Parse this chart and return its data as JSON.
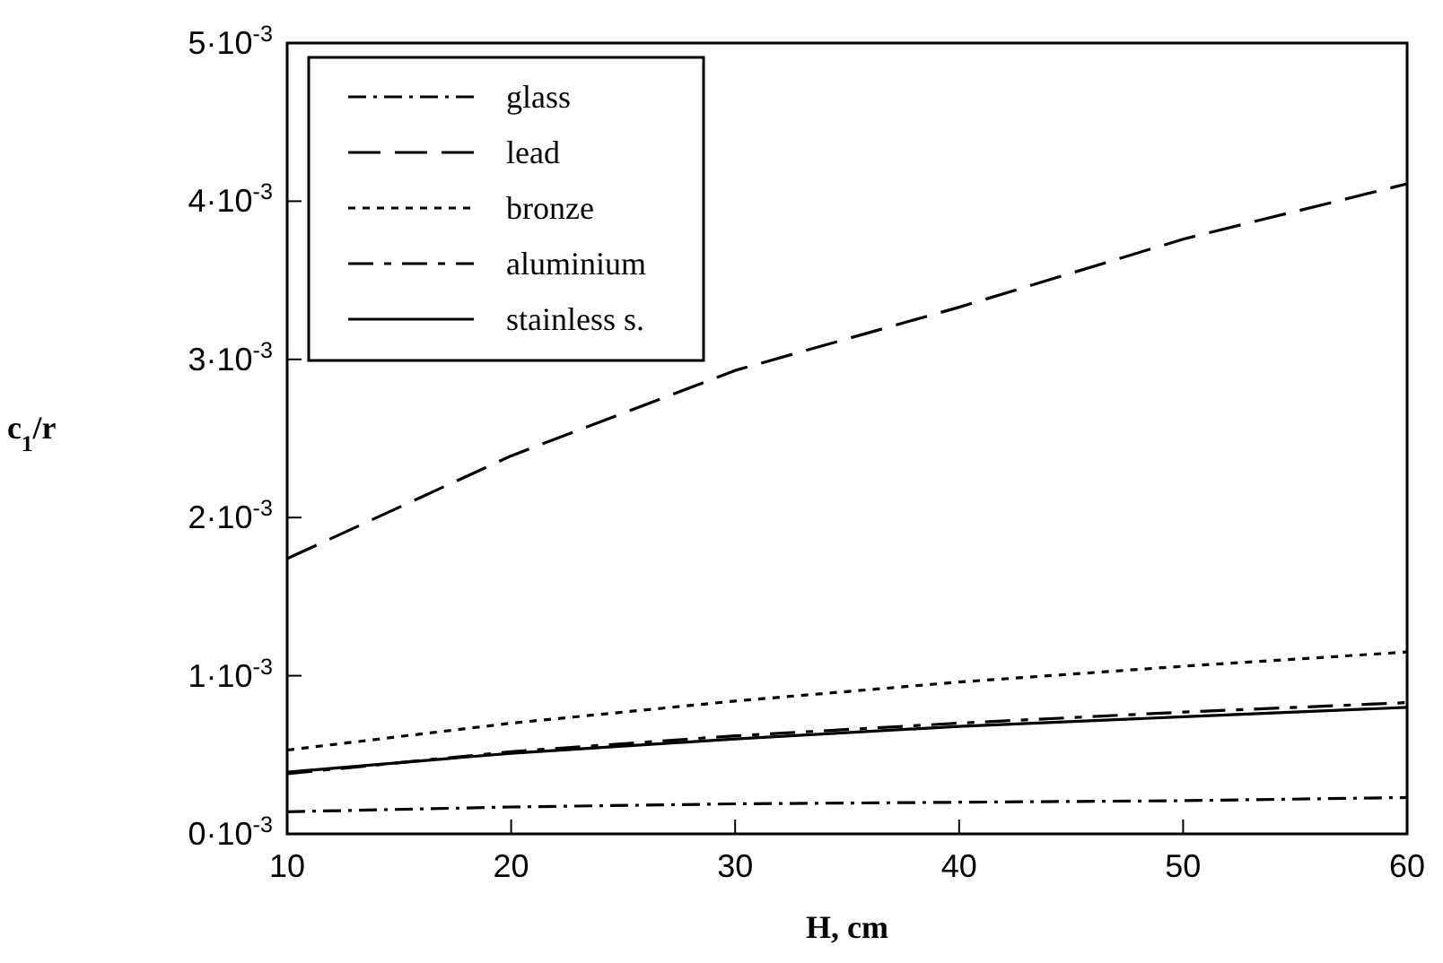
{
  "chart_data": {
    "type": "line",
    "xlabel": "H, cm",
    "ylabel": "c$_{1}$/r",
    "x": [
      10,
      20,
      30,
      40,
      50,
      60
    ],
    "xlim": [
      10,
      60
    ],
    "xticks": [
      10,
      20,
      30,
      40,
      50,
      60
    ],
    "ylim": [
      0,
      0.005
    ],
    "yticks": [
      {
        "value": 0,
        "label": "0·10$^{-3}$"
      },
      {
        "value": 0.001,
        "label": "1·10$^{-3}$"
      },
      {
        "value": 0.002,
        "label": "2·10$^{-3}$"
      },
      {
        "value": 0.003,
        "label": "3·10$^{-3}$"
      },
      {
        "value": 0.004,
        "label": "4·10$^{-3}$"
      },
      {
        "value": 0.005,
        "label": "5·10$^{-3}$"
      }
    ],
    "legend": "top left",
    "grid": false,
    "series": [
      {
        "name": "glass",
        "color": "#000000",
        "line_style": "dashdot",
        "values": [
          0.00014,
          0.00017,
          0.00019,
          0.0002,
          0.00021,
          0.00023
        ]
      },
      {
        "name": "lead",
        "color": "#000000",
        "line_style": "longdash",
        "values": [
          0.00174,
          0.00239,
          0.00293,
          0.00333,
          0.00376,
          0.00411
        ]
      },
      {
        "name": "bronze",
        "color": "#000000",
        "line_style": "dotted",
        "values": [
          0.00053,
          0.0007,
          0.00084,
          0.00096,
          0.00106,
          0.00115
        ]
      },
      {
        "name": "aluminium",
        "color": "#000000",
        "line_style": "dashed",
        "values": [
          0.00038,
          0.00052,
          0.00062,
          0.0007,
          0.00077,
          0.00083
        ]
      },
      {
        "name": "stainless s.",
        "color": "#000000",
        "line_style": "solid",
        "values": [
          0.00039,
          0.00051,
          0.0006,
          0.00068,
          0.00074,
          0.0008
        ]
      }
    ]
  }
}
